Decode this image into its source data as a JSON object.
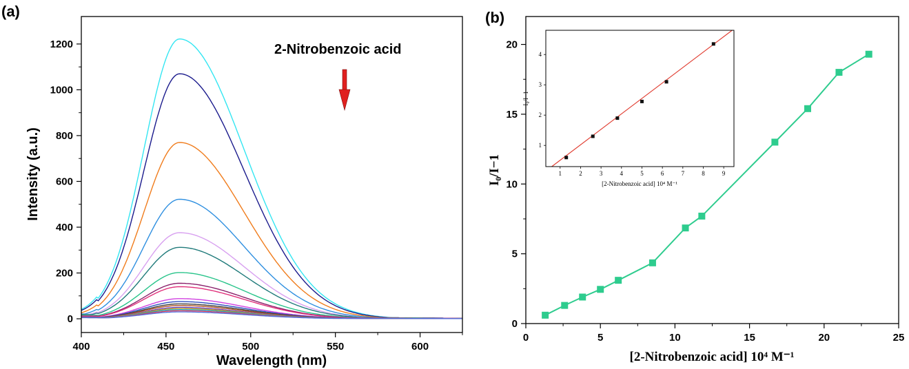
{
  "panel_a": {
    "label": "(a)",
    "annotation": "2-Nitrobenzoic acid",
    "arrow_color": "#e0201f"
  },
  "panel_b": {
    "label": "(b)"
  },
  "chart_data": [
    {
      "type": "line",
      "title": "",
      "xlabel": "Wavelength (nm)",
      "ylabel": "Intensity (a.u.)",
      "xlim": [
        400,
        625
      ],
      "ylim": [
        -60,
        1320
      ],
      "xticks": [
        400,
        450,
        500,
        550,
        600
      ],
      "xtick_labels": [
        "400",
        "450",
        "500",
        "550",
        "600"
      ],
      "yticks": [
        0,
        200,
        400,
        600,
        800,
        1000,
        1200
      ],
      "ytick_labels": [
        "0",
        "200",
        "400",
        "600",
        "800",
        "1000",
        "1200"
      ],
      "peak_wavelength": 458,
      "grid": false,
      "series": [
        {
          "peak": 1222,
          "color": "#33e6f2"
        },
        {
          "peak": 1070,
          "color": "#1a1a8c"
        },
        {
          "peak": 770,
          "color": "#f07c1c"
        },
        {
          "peak": 522,
          "color": "#2e8fe0"
        },
        {
          "peak": 376,
          "color": "#d8a0f0"
        },
        {
          "peak": 312,
          "color": "#1f7a7a"
        },
        {
          "peak": 202,
          "color": "#28c48a"
        },
        {
          "peak": 155,
          "color": "#8a1f6a"
        },
        {
          "peak": 140,
          "color": "#e0307a"
        },
        {
          "peak": 88,
          "color": "#d040e0"
        },
        {
          "peak": 75,
          "color": "#3050c0"
        },
        {
          "peak": 65,
          "color": "#404040"
        },
        {
          "peak": 58,
          "color": "#b05020"
        },
        {
          "peak": 50,
          "color": "#6a3fc0"
        },
        {
          "peak": 45,
          "color": "#c0a020"
        },
        {
          "peak": 40,
          "color": "#20a0c0"
        },
        {
          "peak": 35,
          "color": "#e04060"
        },
        {
          "peak": 30,
          "color": "#5070e0"
        }
      ]
    },
    {
      "type": "line",
      "title": "",
      "xlabel": "[2-Nitrobenzoic acid] 10⁴ M⁻¹",
      "ylabel": "I₀/I−1",
      "xlim": [
        0,
        25
      ],
      "ylim": [
        0,
        22
      ],
      "xticks": [
        0,
        5,
        10,
        15,
        20,
        25
      ],
      "xtick_labels": [
        "0",
        "5",
        "10",
        "15",
        "20",
        "25"
      ],
      "yticks": [
        0,
        5,
        10,
        15,
        20
      ],
      "ytick_labels": [
        "0",
        "5",
        "10",
        "15",
        "20"
      ],
      "color": "#2ecc8e",
      "marker": "square",
      "x": [
        1.3,
        2.6,
        3.8,
        5.0,
        6.2,
        8.5,
        10.7,
        11.8,
        16.7,
        18.9,
        21.0,
        23.0
      ],
      "y": [
        0.6,
        1.3,
        1.9,
        2.45,
        3.1,
        4.35,
        6.85,
        7.7,
        13.0,
        15.4,
        18.0,
        19.3
      ]
    },
    {
      "type": "scatter",
      "inset": true,
      "title": "",
      "xlabel": "[2-Nitrobenzoic acid] 10⁴ M⁻¹",
      "ylabel": "I₀/I−1",
      "xlim": [
        0.3,
        9.5
      ],
      "ylim": [
        0.3,
        4.8
      ],
      "xticks": [
        1,
        2,
        3,
        4,
        5,
        6,
        7,
        8,
        9
      ],
      "xtick_labels": [
        "1",
        "2",
        "3",
        "4",
        "5",
        "6",
        "7",
        "8",
        "9"
      ],
      "yticks": [
        1,
        2,
        3,
        4
      ],
      "ytick_labels": [
        "1",
        "2",
        "3",
        "4"
      ],
      "x": [
        1.3,
        2.6,
        3.8,
        5.0,
        6.2,
        8.5
      ],
      "y": [
        0.6,
        1.3,
        1.9,
        2.45,
        3.1,
        4.35
      ],
      "fit_line": {
        "slope": 0.51,
        "intercept": 0.0,
        "color": "#e03a2e"
      },
      "marker_color": "#111111"
    }
  ]
}
